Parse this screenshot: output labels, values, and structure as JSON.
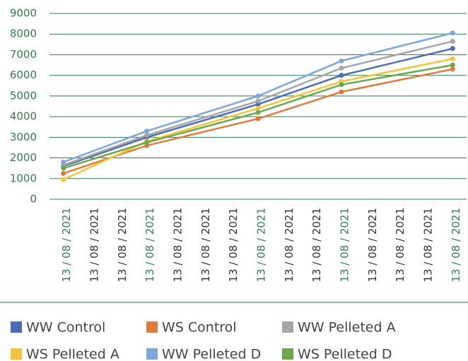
{
  "chart_data": {
    "type": "line",
    "categories": [
      "13 / 08 / 2021",
      "13 / 08 / 2021",
      "13 / 08 / 2021",
      "13 / 08 / 2021",
      "13 / 08 / 2021",
      "13 / 08 / 2021",
      "13 / 08 / 2021",
      "13 / 08 / 2021",
      "13 / 08 / 2021",
      "13 / 08 / 2021",
      "13 / 08 / 2021",
      "13 / 08 / 2021",
      "13 / 08 / 2021",
      "13 / 08 / 2021",
      "13 / 08 / 2021"
    ],
    "series": [
      {
        "name": "WW Control",
        "color": "#4a6cb7",
        "values": [
          1600,
          null,
          null,
          3000,
          null,
          null,
          null,
          4600,
          null,
          null,
          6000,
          null,
          null,
          null,
          7300
        ]
      },
      {
        "name": "WS Control",
        "color": "#e07b3c",
        "values": [
          1250,
          null,
          null,
          2600,
          null,
          null,
          null,
          3900,
          null,
          null,
          5200,
          null,
          null,
          null,
          6300
        ]
      },
      {
        "name": "WW Pelleted A",
        "color": "#a5a5a5",
        "values": [
          1650,
          null,
          null,
          3100,
          null,
          null,
          null,
          4750,
          null,
          null,
          6350,
          null,
          null,
          null,
          7650
        ]
      },
      {
        "name": "WS Pelleted A",
        "color": "#f2c43b",
        "values": [
          950,
          null,
          null,
          2800,
          null,
          null,
          null,
          4400,
          null,
          null,
          5700,
          null,
          null,
          null,
          6800
        ]
      },
      {
        "name": "WW Pelleted D",
        "color": "#7ea6d8",
        "values": [
          1800,
          null,
          null,
          3300,
          null,
          null,
          null,
          5000,
          null,
          null,
          6700,
          null,
          null,
          null,
          8050
        ]
      },
      {
        "name": "WS Pelleted D",
        "color": "#6aa84f",
        "values": [
          1500,
          null,
          null,
          2750,
          null,
          null,
          null,
          4200,
          null,
          null,
          5550,
          null,
          null,
          null,
          6500
        ]
      }
    ],
    "connect_gaps": true,
    "ylim": [
      0,
      9000
    ],
    "yticks": [
      0,
      1000,
      2000,
      3000,
      4000,
      5000,
      6000,
      7000,
      8000,
      9000
    ],
    "grid": true
  }
}
